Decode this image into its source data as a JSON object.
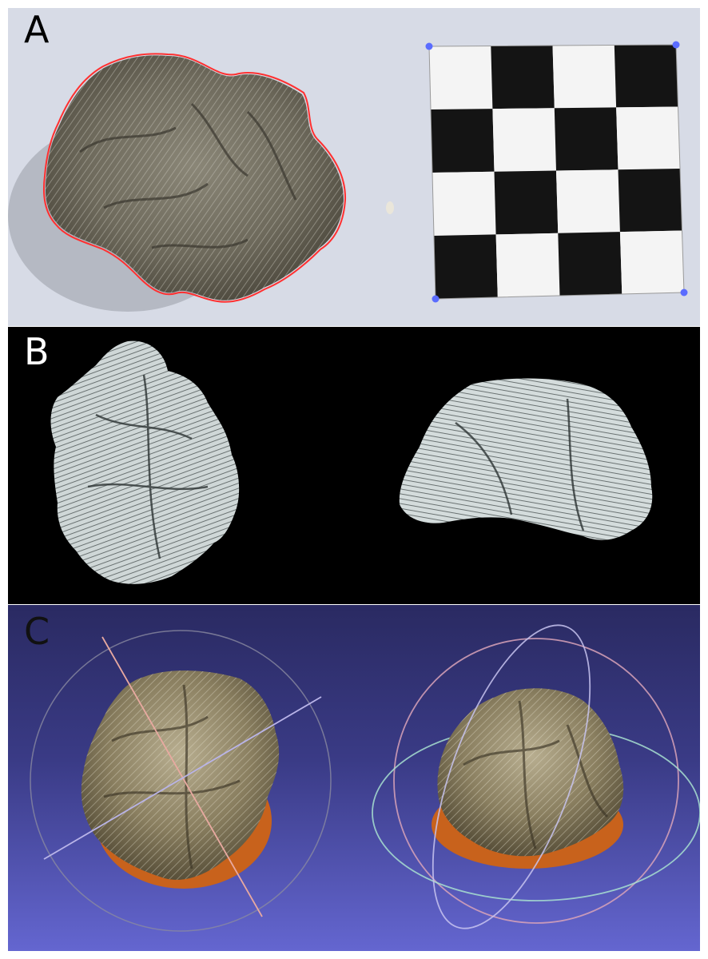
{
  "figure": {
    "panels": [
      {
        "label": "A",
        "content": "coral-photo-with-checkerboard-scale"
      },
      {
        "label": "B",
        "content": "grayscale-3d-surface-renders"
      },
      {
        "label": "C",
        "content": "textured-3d-model-with-trackball"
      }
    ]
  },
  "colors": {
    "outline": "#ff3030",
    "corner_marker": "#5a6cff",
    "checker_dark": "#141414",
    "checker_light": "#f4f4f4",
    "coral_brown": "#6b6556",
    "render_white": "#dfe6e6",
    "base_orange": "#c8621c"
  }
}
